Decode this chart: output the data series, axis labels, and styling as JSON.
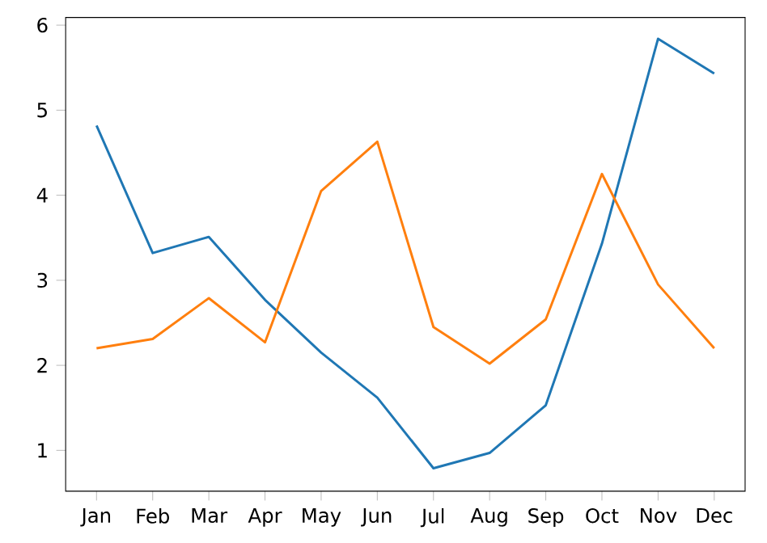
{
  "chart_data": {
    "type": "line",
    "categories": [
      "Jan",
      "Feb",
      "Mar",
      "Apr",
      "May",
      "Jun",
      "Jul",
      "Aug",
      "Sep",
      "Oct",
      "Nov",
      "Dec"
    ],
    "series": [
      {
        "color": "#1f77b4",
        "values": [
          4.82,
          3.32,
          3.51,
          2.77,
          2.15,
          1.62,
          0.79,
          0.97,
          1.53,
          3.43,
          5.84,
          5.43
        ]
      },
      {
        "color": "#ff7f0e",
        "values": [
          2.2,
          2.31,
          2.79,
          2.27,
          4.05,
          4.63,
          2.45,
          2.02,
          2.54,
          4.25,
          2.95,
          2.2
        ]
      }
    ],
    "ylim": [
      0.52,
      6.09
    ],
    "yticks": [
      1,
      2,
      3,
      4,
      5,
      6
    ],
    "marker": "none",
    "line_style": "solid"
  }
}
